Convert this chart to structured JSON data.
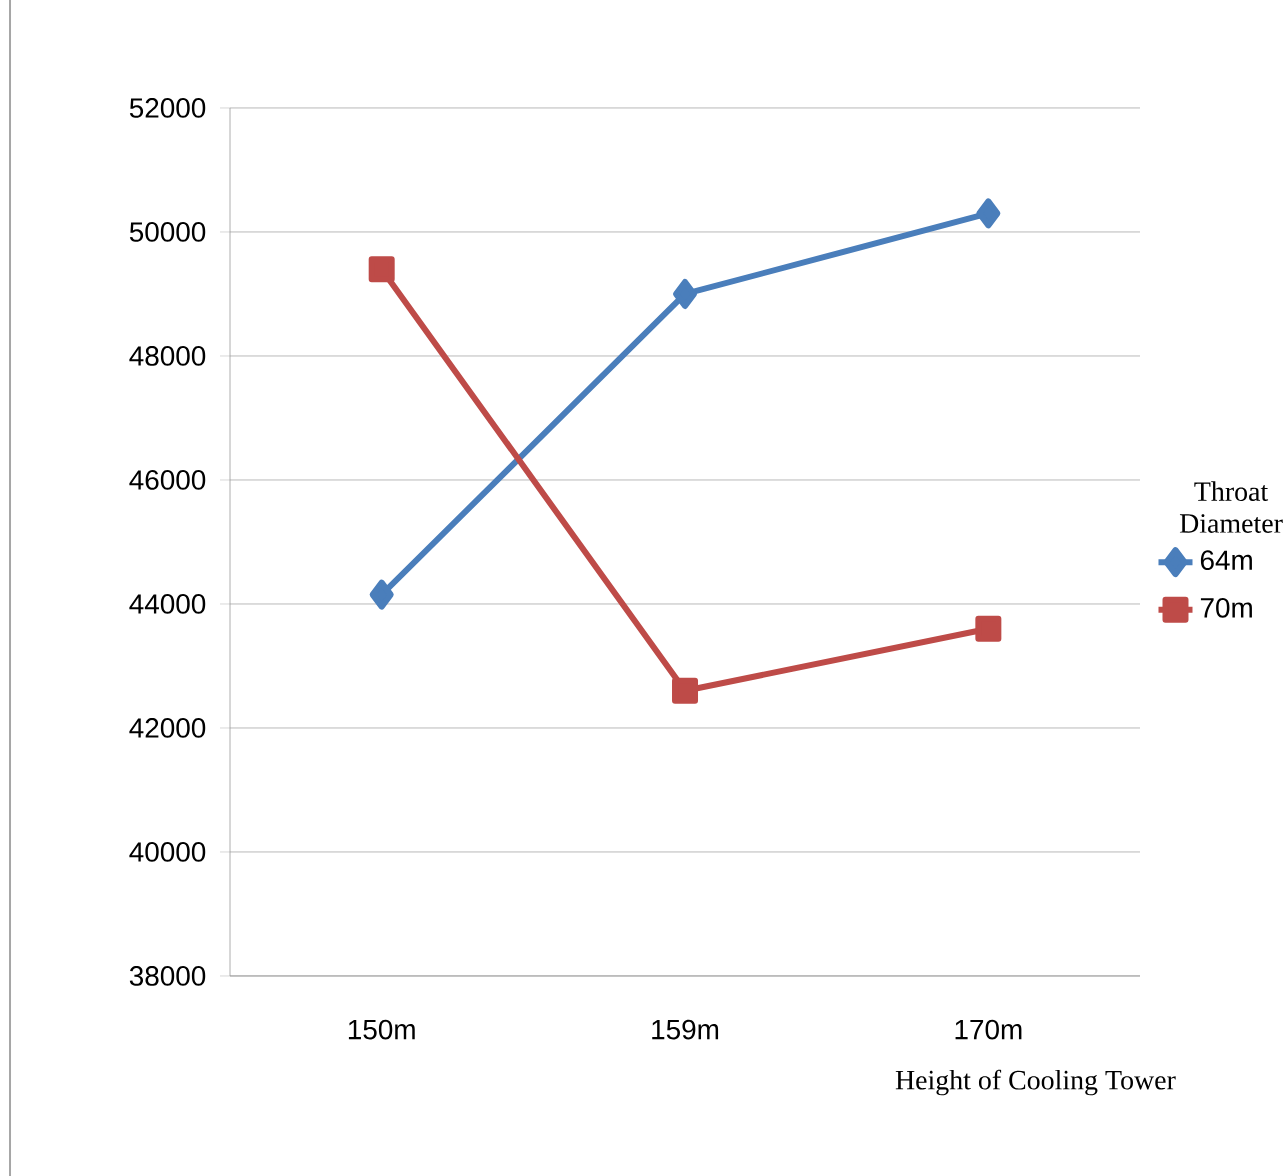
{
  "chart_data": {
    "type": "line",
    "xlabel": "Height of Cooling Tower",
    "legend_title": "Throat Diameter",
    "categories": [
      "150m",
      "159m",
      "170m"
    ],
    "series": [
      {
        "name": "64m",
        "color": "#4a7ebb",
        "marker": "diamond",
        "values": [
          44150,
          49000,
          50300
        ]
      },
      {
        "name": "70m",
        "color": "#be4b48",
        "marker": "square",
        "values": [
          49400,
          42600,
          43600
        ]
      }
    ],
    "ylim": [
      38000,
      52000
    ],
    "yticks": [
      38000,
      40000,
      42000,
      44000,
      46000,
      48000,
      50000,
      52000
    ],
    "grid": "y",
    "legend": "right",
    "line_style": "solid"
  }
}
